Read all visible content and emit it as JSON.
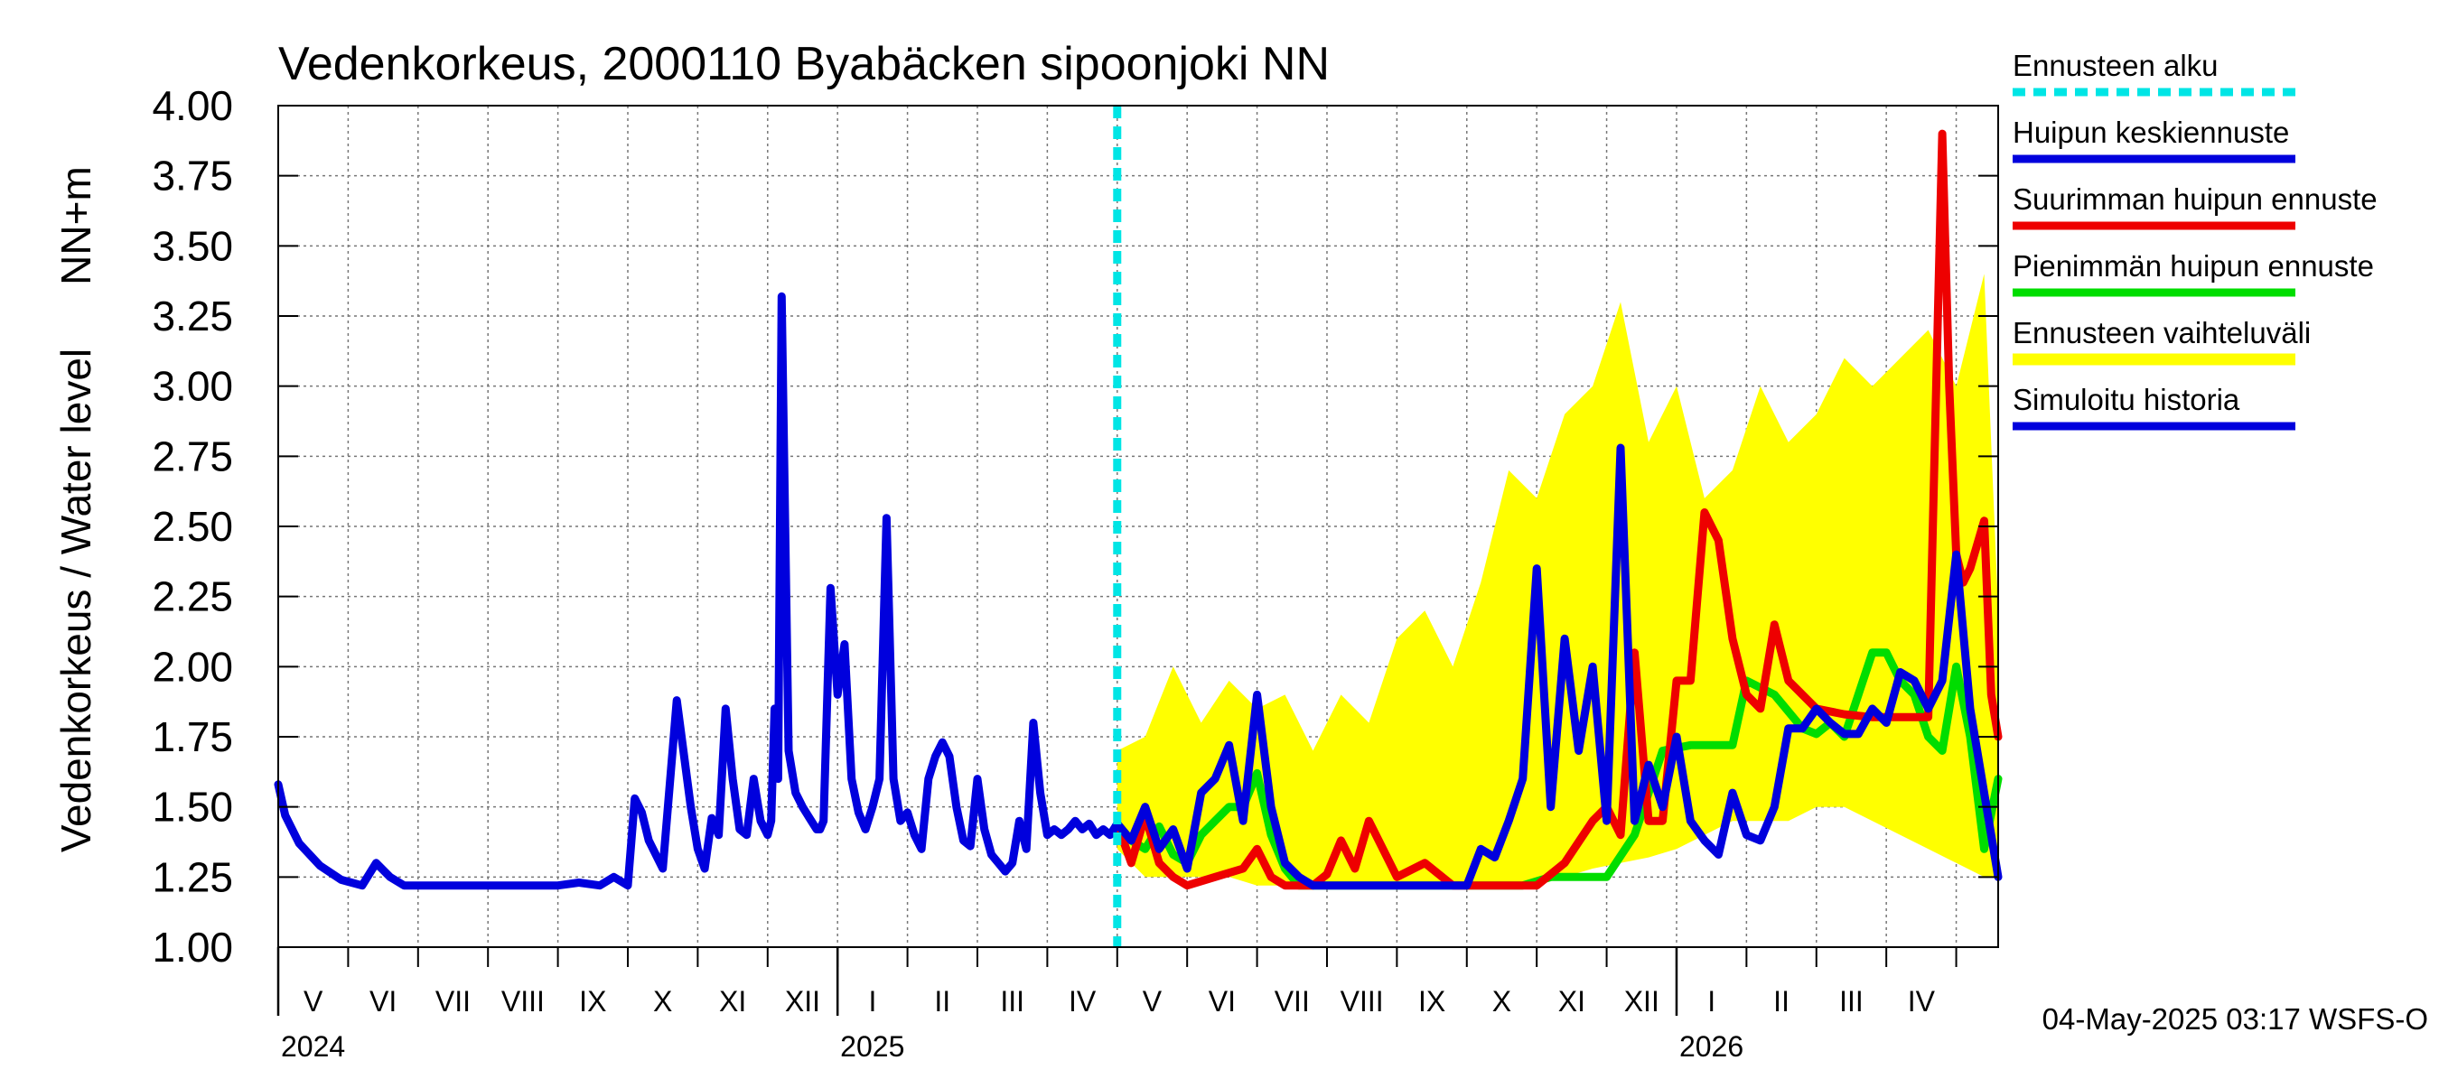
{
  "chart_data": {
    "type": "line",
    "title": "Vedenkorkeus, 2000110 Byabäcken sipoonjoki NN",
    "ylabel": "Vedenkorkeus / Water level",
    "yunit": "NN+m",
    "ylim": [
      1.0,
      4.0
    ],
    "yticks": [
      "1.00",
      "1.25",
      "1.50",
      "1.75",
      "2.00",
      "2.25",
      "2.50",
      "2.75",
      "3.00",
      "3.25",
      "3.50",
      "3.75",
      "4.00"
    ],
    "x_start_month_index": 0,
    "x_range_months": [
      0,
      24.6
    ],
    "months": [
      "V",
      "VI",
      "VII",
      "VIII",
      "IX",
      "X",
      "XI",
      "XII",
      "I",
      "II",
      "III",
      "IV",
      "V",
      "VI",
      "VII",
      "VIII",
      "IX",
      "X",
      "XI",
      "XII",
      "I",
      "II",
      "III",
      "IV"
    ],
    "year_labels": [
      {
        "label": "2024",
        "month_index": 0
      },
      {
        "label": "2025",
        "month_index": 8
      },
      {
        "label": "2026",
        "month_index": 20
      }
    ],
    "forecast_start_month": 12.0,
    "timestamp": "04-May-2025 03:17 WSFS-O",
    "legend": [
      {
        "key": "forecast_start",
        "label": "Ennusteen alku",
        "color": "#00e5e5",
        "style": "dashed"
      },
      {
        "key": "mean_peak",
        "label": "Huipun keskiennuste",
        "color": "#0000dd",
        "style": "solid"
      },
      {
        "key": "max_peak",
        "label": "Suurimman huipun ennuste",
        "color": "#ee0000",
        "style": "solid"
      },
      {
        "key": "min_peak",
        "label": "Pienimmän huipun ennuste",
        "color": "#00dd00",
        "style": "solid"
      },
      {
        "key": "range",
        "label": "Ennusteen vaihteluväli",
        "color": "#ffff00",
        "style": "band"
      },
      {
        "key": "history",
        "label": "Simuloitu historia",
        "color": "#0000dd",
        "style": "solid"
      }
    ],
    "series": [
      {
        "name": "Simuloitu historia",
        "color": "#0000dd",
        "x": [
          0,
          0.1,
          0.3,
          0.6,
          0.9,
          1.2,
          1.4,
          1.6,
          1.8,
          2.2,
          2.6,
          3.0,
          3.5,
          4.0,
          4.3,
          4.6,
          4.8,
          5.0,
          5.1,
          5.2,
          5.3,
          5.5,
          5.7,
          5.9,
          6.0,
          6.1,
          6.2,
          6.3,
          6.4,
          6.5,
          6.6,
          6.7,
          6.8,
          6.9,
          7.0,
          7.05,
          7.1,
          7.15,
          7.2,
          7.3,
          7.4,
          7.5,
          7.6,
          7.7,
          7.75,
          7.8,
          7.9,
          8.0,
          8.1,
          8.2,
          8.3,
          8.4,
          8.5,
          8.6,
          8.7,
          8.8,
          8.9,
          9.0,
          9.1,
          9.2,
          9.3,
          9.4,
          9.5,
          9.6,
          9.7,
          9.8,
          9.9,
          10.0,
          10.1,
          10.2,
          10.3,
          10.4,
          10.5,
          10.6,
          10.7,
          10.8,
          10.9,
          11.0,
          11.1,
          11.2,
          11.3,
          11.4,
          11.5,
          11.6,
          11.7,
          11.8,
          11.9,
          12.0
        ],
        "y": [
          1.58,
          1.47,
          1.37,
          1.29,
          1.24,
          1.22,
          1.3,
          1.25,
          1.22,
          1.22,
          1.22,
          1.22,
          1.22,
          1.22,
          1.23,
          1.22,
          1.25,
          1.22,
          1.53,
          1.48,
          1.38,
          1.28,
          1.88,
          1.5,
          1.35,
          1.28,
          1.46,
          1.4,
          1.85,
          1.6,
          1.42,
          1.4,
          1.6,
          1.45,
          1.4,
          1.45,
          1.85,
          1.6,
          3.32,
          1.7,
          1.55,
          1.5,
          1.46,
          1.42,
          1.42,
          1.45,
          2.28,
          1.9,
          2.08,
          1.6,
          1.48,
          1.42,
          1.5,
          1.6,
          2.53,
          1.6,
          1.45,
          1.48,
          1.4,
          1.35,
          1.6,
          1.68,
          1.73,
          1.68,
          1.5,
          1.38,
          1.36,
          1.6,
          1.42,
          1.33,
          1.3,
          1.27,
          1.3,
          1.45,
          1.35,
          1.8,
          1.55,
          1.4,
          1.42,
          1.4,
          1.42,
          1.45,
          1.42,
          1.44,
          1.4,
          1.42,
          1.4,
          1.44
        ]
      },
      {
        "name": "Huipun keskiennuste",
        "color": "#0000dd",
        "x": [
          12.0,
          12.2,
          12.4,
          12.6,
          12.8,
          13.0,
          13.2,
          13.4,
          13.6,
          13.8,
          14.0,
          14.2,
          14.4,
          14.6,
          14.8,
          15.0,
          15.2,
          15.6,
          16.0,
          16.4,
          16.8,
          17.0,
          17.2,
          17.4,
          17.6,
          17.8,
          18.0,
          18.2,
          18.4,
          18.6,
          18.8,
          19.0,
          19.2,
          19.4,
          19.6,
          19.8,
          20.0,
          20.2,
          20.4,
          20.6,
          20.8,
          21.0,
          21.2,
          21.4,
          21.6,
          21.8,
          22.0,
          22.2,
          22.4,
          22.6,
          22.8,
          23.0,
          23.2,
          23.4,
          23.6,
          23.8,
          24.0,
          24.2,
          24.4,
          24.6
        ],
        "y": [
          1.44,
          1.38,
          1.5,
          1.35,
          1.42,
          1.28,
          1.55,
          1.6,
          1.72,
          1.45,
          1.9,
          1.5,
          1.3,
          1.25,
          1.22,
          1.22,
          1.22,
          1.22,
          1.22,
          1.22,
          1.22,
          1.22,
          1.35,
          1.32,
          1.45,
          1.6,
          2.35,
          1.5,
          2.1,
          1.7,
          2.0,
          1.45,
          2.78,
          1.45,
          1.65,
          1.5,
          1.75,
          1.45,
          1.38,
          1.33,
          1.55,
          1.4,
          1.38,
          1.5,
          1.78,
          1.78,
          1.85,
          1.8,
          1.76,
          1.76,
          1.85,
          1.8,
          1.98,
          1.95,
          1.85,
          1.95,
          2.4,
          1.85,
          1.55,
          1.25
        ]
      },
      {
        "name": "Suurimman huipun ennuste",
        "color": "#ee0000",
        "x": [
          12.0,
          12.2,
          12.4,
          12.6,
          12.8,
          13.0,
          13.4,
          13.8,
          14.0,
          14.2,
          14.4,
          14.6,
          14.8,
          15.0,
          15.2,
          15.4,
          15.6,
          15.8,
          16.0,
          16.4,
          16.8,
          17.2,
          17.6,
          18.0,
          18.4,
          18.8,
          19.0,
          19.2,
          19.4,
          19.6,
          19.8,
          20.0,
          20.2,
          20.4,
          20.6,
          20.8,
          21.0,
          21.2,
          21.4,
          21.6,
          21.8,
          22.0,
          22.4,
          22.8,
          23.2,
          23.6,
          23.8,
          23.9,
          24.0,
          24.1,
          24.2,
          24.4,
          24.5,
          24.6
        ],
        "y": [
          1.44,
          1.3,
          1.47,
          1.3,
          1.25,
          1.22,
          1.25,
          1.28,
          1.35,
          1.25,
          1.22,
          1.22,
          1.22,
          1.26,
          1.38,
          1.28,
          1.45,
          1.35,
          1.25,
          1.3,
          1.22,
          1.22,
          1.22,
          1.22,
          1.3,
          1.45,
          1.5,
          1.4,
          2.05,
          1.45,
          1.45,
          1.95,
          1.95,
          2.55,
          2.45,
          2.1,
          1.9,
          1.85,
          2.15,
          1.95,
          1.9,
          1.85,
          1.83,
          1.82,
          1.82,
          1.82,
          3.9,
          3.0,
          2.4,
          2.3,
          2.35,
          2.52,
          1.9,
          1.75
        ]
      },
      {
        "name": "Pienimmän huipun ennuste",
        "color": "#00dd00",
        "x": [
          12.0,
          12.2,
          12.4,
          12.6,
          12.8,
          13.0,
          13.2,
          13.4,
          13.6,
          13.8,
          14.0,
          14.2,
          14.4,
          14.6,
          14.8,
          15.0,
          15.4,
          15.8,
          16.2,
          16.6,
          17.0,
          17.4,
          17.8,
          18.2,
          18.6,
          19.0,
          19.4,
          19.8,
          20.2,
          20.6,
          20.8,
          21.0,
          21.4,
          21.8,
          22.0,
          22.2,
          22.4,
          22.6,
          22.8,
          23.0,
          23.2,
          23.4,
          23.6,
          23.8,
          24.0,
          24.2,
          24.4,
          24.6
        ],
        "y": [
          1.44,
          1.38,
          1.35,
          1.43,
          1.33,
          1.3,
          1.4,
          1.45,
          1.5,
          1.5,
          1.62,
          1.4,
          1.28,
          1.22,
          1.22,
          1.22,
          1.22,
          1.22,
          1.22,
          1.22,
          1.22,
          1.22,
          1.22,
          1.25,
          1.25,
          1.25,
          1.4,
          1.7,
          1.72,
          1.72,
          1.72,
          1.95,
          1.9,
          1.78,
          1.76,
          1.8,
          1.75,
          1.9,
          2.05,
          2.05,
          1.95,
          1.9,
          1.75,
          1.7,
          2.0,
          1.75,
          1.35,
          1.6
        ]
      },
      {
        "name": "Ennusteen vaihteluväli",
        "color": "#ffff00",
        "x": [
          12.0,
          12.4,
          12.8,
          13.2,
          13.6,
          14.0,
          14.4,
          14.8,
          15.2,
          15.6,
          16.0,
          16.4,
          16.8,
          17.2,
          17.6,
          18.0,
          18.4,
          18.8,
          19.2,
          19.6,
          20.0,
          20.4,
          20.8,
          21.2,
          21.6,
          22.0,
          22.4,
          22.8,
          23.2,
          23.6,
          24.0,
          24.4,
          24.6
        ],
        "y_low": [
          1.35,
          1.25,
          1.25,
          1.25,
          1.25,
          1.22,
          1.22,
          1.22,
          1.22,
          1.22,
          1.22,
          1.22,
          1.22,
          1.22,
          1.22,
          1.22,
          1.25,
          1.28,
          1.3,
          1.32,
          1.35,
          1.4,
          1.45,
          1.45,
          1.45,
          1.5,
          1.5,
          1.45,
          1.4,
          1.35,
          1.3,
          1.25,
          1.25
        ],
        "y_high": [
          1.7,
          1.75,
          2.0,
          1.8,
          1.95,
          1.85,
          1.9,
          1.7,
          1.9,
          1.8,
          2.1,
          2.2,
          2.0,
          2.3,
          2.7,
          2.6,
          2.9,
          3.0,
          3.3,
          2.8,
          3.0,
          2.6,
          2.7,
          3.0,
          2.8,
          2.9,
          3.1,
          3.0,
          3.1,
          3.2,
          3.0,
          3.4,
          2.2
        ]
      }
    ]
  }
}
